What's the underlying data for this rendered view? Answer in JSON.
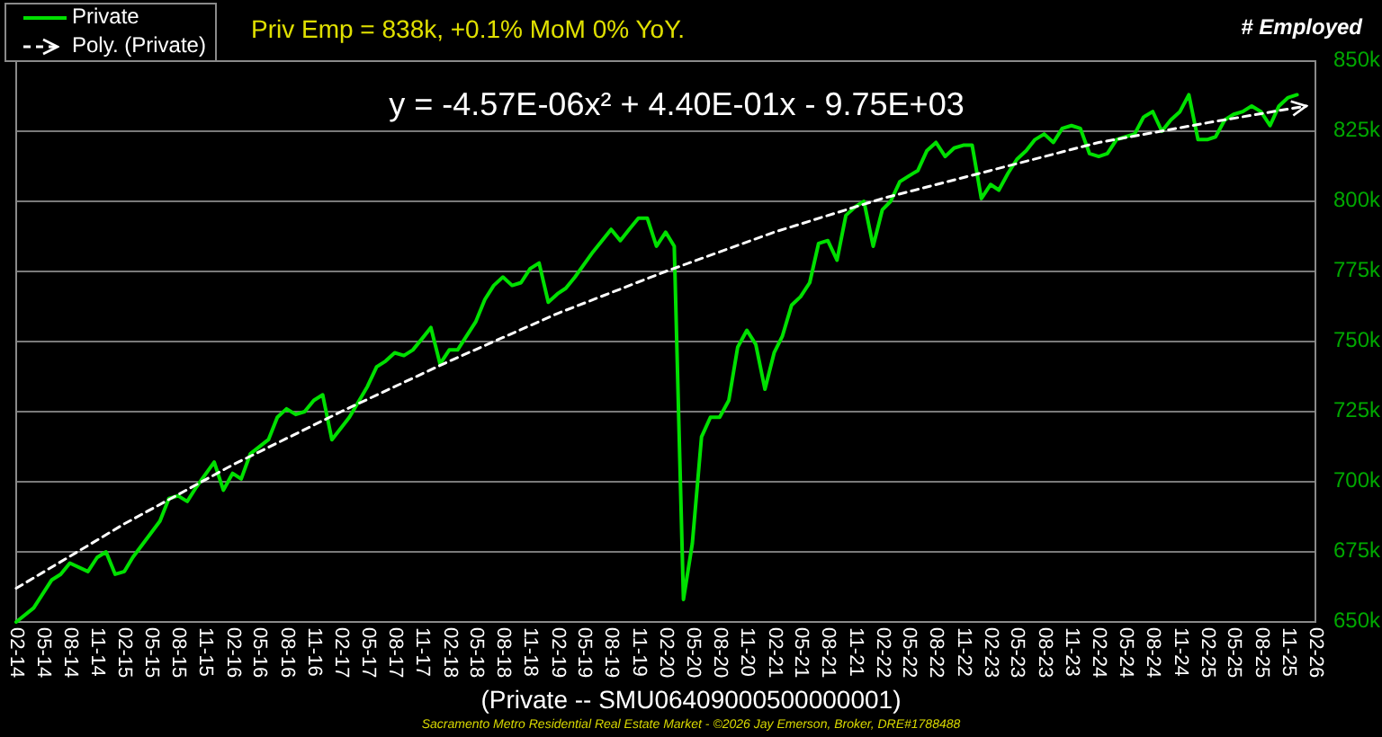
{
  "chart_data": {
    "type": "line",
    "title": "Priv Emp = 838k, +0.1% MoM 0% YoY.",
    "ylabel": "# Employed",
    "xlabel": "(Private -- SMU06409000500000001)",
    "annotations": [
      "y = -4.57E-06x² + 4.40E-01x - 9.75E+03",
      "Sacramento Metro Residential Real Estate Market - ©2026 Jay Emerson, Broker, DRE#1788488"
    ],
    "series": [
      {
        "name": "Private",
        "color": "#00e000",
        "line_style": "solid",
        "x": [
          "2014-02",
          "2014-04",
          "2014-06",
          "2014-07",
          "2014-08",
          "2014-10",
          "2014-11",
          "2014-12",
          "2015-01",
          "2015-02",
          "2015-03",
          "2015-06",
          "2015-07",
          "2015-08",
          "2015-09",
          "2015-10",
          "2015-12",
          "2016-01",
          "2016-02",
          "2016-03",
          "2016-04",
          "2016-06",
          "2016-07",
          "2016-08",
          "2016-09",
          "2016-10",
          "2016-11",
          "2016-12",
          "2017-01",
          "2017-03",
          "2017-05",
          "2017-06",
          "2017-07",
          "2017-08",
          "2017-09",
          "2017-10",
          "2017-11",
          "2017-12",
          "2018-01",
          "2018-02",
          "2018-03",
          "2018-05",
          "2018-06",
          "2018-07",
          "2018-08",
          "2018-09",
          "2018-10",
          "2018-11",
          "2018-12",
          "2019-01",
          "2019-02",
          "2019-03",
          "2019-04",
          "2019-06",
          "2019-08",
          "2019-09",
          "2019-10",
          "2019-11",
          "2019-12",
          "2020-01",
          "2020-02",
          "2020-03",
          "2020-04",
          "2020-05",
          "2020-06",
          "2020-07",
          "2020-08",
          "2020-09",
          "2020-10",
          "2020-11",
          "2020-12",
          "2021-01",
          "2021-02",
          "2021-03",
          "2021-04",
          "2021-05",
          "2021-06",
          "2021-07",
          "2021-08",
          "2021-09",
          "2021-10",
          "2021-11",
          "2021-12",
          "2022-01",
          "2022-02",
          "2022-03",
          "2022-04",
          "2022-05",
          "2022-06",
          "2022-07",
          "2022-08",
          "2022-09",
          "2022-10",
          "2022-11",
          "2022-12",
          "2023-01",
          "2023-02",
          "2023-03",
          "2023-04",
          "2023-05",
          "2023-06",
          "2023-07",
          "2023-08",
          "2023-09",
          "2023-10",
          "2023-11",
          "2023-12",
          "2024-01",
          "2024-02",
          "2024-03",
          "2024-04",
          "2024-05",
          "2024-06",
          "2024-07",
          "2024-08",
          "2024-09",
          "2024-10",
          "2024-11",
          "2024-12",
          "2025-01",
          "2025-02",
          "2025-03",
          "2025-04",
          "2025-05",
          "2025-06",
          "2025-07",
          "2025-08",
          "2025-09",
          "2025-10",
          "2025-11",
          "2025-12"
        ],
        "values": [
          650,
          655,
          665,
          667,
          671,
          668,
          673,
          675,
          667,
          668,
          673,
          686,
          694,
          695,
          693,
          698,
          707,
          697,
          703,
          701,
          710,
          715,
          723,
          726,
          724,
          725,
          729,
          731,
          715,
          723,
          734,
          741,
          743,
          746,
          745,
          747,
          751,
          755,
          742,
          747,
          747,
          757,
          765,
          770,
          773,
          770,
          771,
          776,
          778,
          764,
          767,
          769,
          773,
          782,
          790,
          786,
          790,
          794,
          794,
          784,
          789,
          784,
          658,
          678,
          716,
          723,
          723,
          729,
          748,
          754,
          749,
          733,
          746,
          752,
          763,
          766,
          771,
          785,
          786,
          779,
          795,
          798,
          800,
          784,
          797,
          800,
          807,
          809,
          811,
          818,
          821,
          816,
          819,
          820,
          820,
          801,
          806,
          804,
          810,
          815,
          818,
          822,
          824,
          821,
          826,
          827,
          826,
          817,
          816,
          817,
          822,
          823,
          824,
          830,
          832,
          825,
          829,
          832,
          838,
          822,
          822,
          823,
          829,
          831,
          832,
          834,
          832,
          827,
          834,
          837,
          838
        ]
      },
      {
        "name": "Poly. (Private)",
        "color": "#ffffff",
        "line_style": "dashed",
        "x": [
          "2014-02",
          "2015-02",
          "2016-02",
          "2017-02",
          "2018-02",
          "2019-02",
          "2020-02",
          "2021-02",
          "2022-02",
          "2023-02",
          "2024-02",
          "2025-02",
          "2026-01"
        ],
        "values": [
          662,
          685,
          706,
          725,
          743,
          760,
          775,
          789,
          801,
          811,
          821,
          828,
          834
        ]
      }
    ],
    "xlim": [
      "2014-02",
      "2026-02"
    ],
    "xticks": [
      {
        "value": "2014-02",
        "label": "02-14"
      },
      {
        "value": "2014-05",
        "label": "05-14"
      },
      {
        "value": "2014-08",
        "label": "08-14"
      },
      {
        "value": "2014-11",
        "label": "11-14"
      },
      {
        "value": "2015-02",
        "label": "02-15"
      },
      {
        "value": "2015-05",
        "label": "05-15"
      },
      {
        "value": "2015-08",
        "label": "08-15"
      },
      {
        "value": "2015-11",
        "label": "11-15"
      },
      {
        "value": "2016-02",
        "label": "02-16"
      },
      {
        "value": "2016-05",
        "label": "05-16"
      },
      {
        "value": "2016-08",
        "label": "08-16"
      },
      {
        "value": "2016-11",
        "label": "11-16"
      },
      {
        "value": "2017-02",
        "label": "02-17"
      },
      {
        "value": "2017-05",
        "label": "05-17"
      },
      {
        "value": "2017-08",
        "label": "08-17"
      },
      {
        "value": "2017-11",
        "label": "11-17"
      },
      {
        "value": "2018-02",
        "label": "02-18"
      },
      {
        "value": "2018-05",
        "label": "05-18"
      },
      {
        "value": "2018-08",
        "label": "08-18"
      },
      {
        "value": "2018-11",
        "label": "11-18"
      },
      {
        "value": "2019-02",
        "label": "02-19"
      },
      {
        "value": "2019-05",
        "label": "05-19"
      },
      {
        "value": "2019-08",
        "label": "08-19"
      },
      {
        "value": "2019-11",
        "label": "11-19"
      },
      {
        "value": "2020-02",
        "label": "02-20"
      },
      {
        "value": "2020-05",
        "label": "05-20"
      },
      {
        "value": "2020-08",
        "label": "08-20"
      },
      {
        "value": "2020-11",
        "label": "11-20"
      },
      {
        "value": "2021-02",
        "label": "02-21"
      },
      {
        "value": "2021-05",
        "label": "05-21"
      },
      {
        "value": "2021-08",
        "label": "08-21"
      },
      {
        "value": "2021-11",
        "label": "11-21"
      },
      {
        "value": "2022-02",
        "label": "02-22"
      },
      {
        "value": "2022-05",
        "label": "05-22"
      },
      {
        "value": "2022-08",
        "label": "08-22"
      },
      {
        "value": "2022-11",
        "label": "11-22"
      },
      {
        "value": "2023-02",
        "label": "02-23"
      },
      {
        "value": "2023-05",
        "label": "05-23"
      },
      {
        "value": "2023-08",
        "label": "08-23"
      },
      {
        "value": "2023-11",
        "label": "11-23"
      },
      {
        "value": "2024-02",
        "label": "02-24"
      },
      {
        "value": "2024-05",
        "label": "05-24"
      },
      {
        "value": "2024-08",
        "label": "08-24"
      },
      {
        "value": "2024-11",
        "label": "11-24"
      },
      {
        "value": "2025-02",
        "label": "02-25"
      },
      {
        "value": "2025-05",
        "label": "05-25"
      },
      {
        "value": "2025-08",
        "label": "08-25"
      },
      {
        "value": "2025-11",
        "label": "11-25"
      },
      {
        "value": "2026-02",
        "label": "02-26"
      }
    ],
    "ylim": [
      650,
      850
    ],
    "yticks": [
      {
        "value": 650,
        "label": "650k"
      },
      {
        "value": 675,
        "label": "675k"
      },
      {
        "value": 700,
        "label": "700k"
      },
      {
        "value": 725,
        "label": "725k"
      },
      {
        "value": 750,
        "label": "750k"
      },
      {
        "value": 775,
        "label": "775k"
      },
      {
        "value": 800,
        "label": "800k"
      },
      {
        "value": 825,
        "label": "825k"
      },
      {
        "value": 850,
        "label": "850k"
      }
    ],
    "grid": "y",
    "legend": "top left"
  }
}
